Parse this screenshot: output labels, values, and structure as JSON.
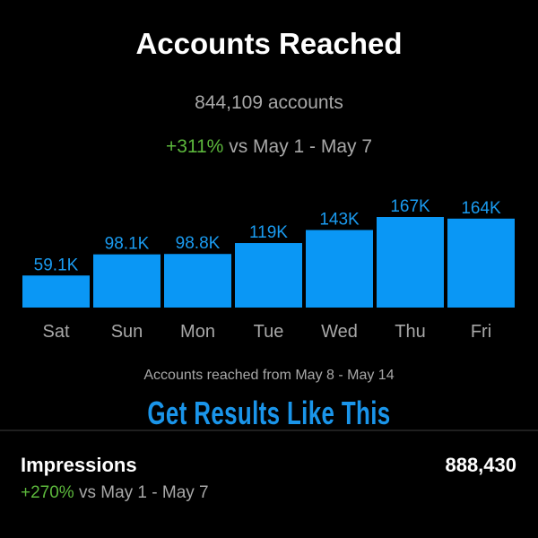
{
  "header": {
    "title": "Accounts Reached",
    "count": "844,109 accounts",
    "change_pct": "+311%",
    "change_text": " vs May 1 - May 7"
  },
  "chart_data": {
    "type": "bar",
    "categories": [
      "Sat",
      "Sun",
      "Mon",
      "Tue",
      "Wed",
      "Thu",
      "Fri"
    ],
    "values": [
      59100,
      98100,
      98800,
      119000,
      143000,
      167000,
      164000
    ],
    "data_labels": [
      "59.1K",
      "98.1K",
      "98.8K",
      "119K",
      "143K",
      "167K",
      "164K"
    ],
    "bar_color": "#0a97f5",
    "label_color": "#1a9bf0",
    "grid": false
  },
  "caption": "Accounts reached from May 8 - May 14",
  "promo": "Get Results Like This",
  "impressions": {
    "label": "Impressions",
    "value": "888,430",
    "change_pct": "+270%",
    "change_text": " vs May 1 - May 7"
  }
}
